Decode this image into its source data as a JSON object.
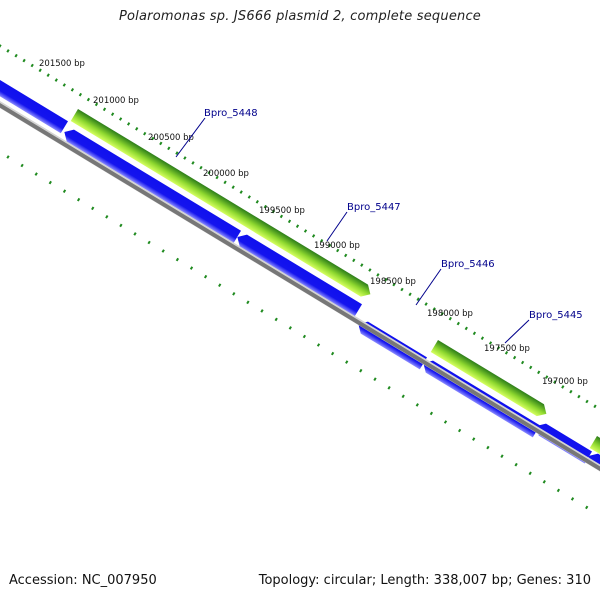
{
  "title": "Polaromonas sp. JS666 plasmid 2, complete sequence",
  "ticks": [
    {
      "label": "201500 bp",
      "bp": 201500
    },
    {
      "label": "201000 bp",
      "bp": 201000
    },
    {
      "label": "200500 bp",
      "bp": 200500
    },
    {
      "label": "200000 bp",
      "bp": 200000
    },
    {
      "label": "199500 bp",
      "bp": 199500
    },
    {
      "label": "199000 bp",
      "bp": 199000
    },
    {
      "label": "198500 bp",
      "bp": 198500
    },
    {
      "label": "198000 bp",
      "bp": 198000
    },
    {
      "label": "197500 bp",
      "bp": 197500
    },
    {
      "label": "197000 bp",
      "bp": 197000
    }
  ],
  "genes": [
    {
      "label": "Bpro_5448"
    },
    {
      "label": "Bpro_5447"
    },
    {
      "label": "Bpro_5446"
    },
    {
      "label": "Bpro_5445"
    }
  ],
  "footer": {
    "accession": "Accession: NC_007950",
    "summary": "Topology: circular; Length: 338,007 bp; Genes: 310"
  },
  "colors": {
    "cds": "#1010ee",
    "cds_highlight": "#8c8cff",
    "gene_dark": "#2c7d19",
    "gene_light": "#d6ff60",
    "backbone": "#777777",
    "tick_dots": "#1f8a1f",
    "label_blue": "#00008b"
  }
}
